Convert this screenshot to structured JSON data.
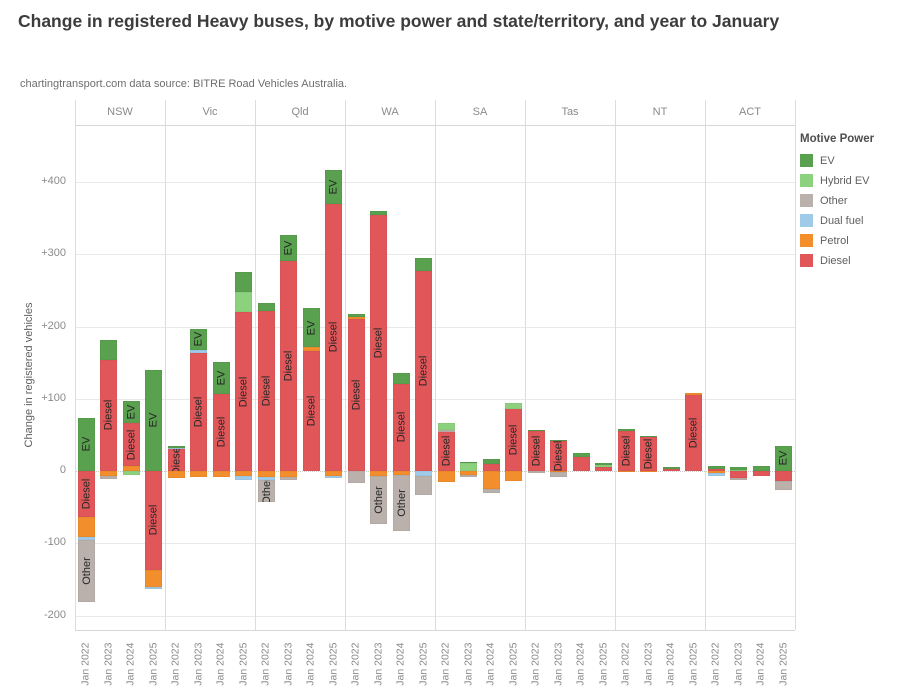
{
  "title": "Change in registered Heavy buses, by motive power and state/territory, and year to January",
  "subtitle": "chartingtransport.com  data source: BITRE Road Vehicles Australia.",
  "y_axis_title": "Change in registered vehicles",
  "legend": {
    "title": "Motive Power",
    "items": [
      {
        "label": "EV",
        "color": "#59a14f"
      },
      {
        "label": "Hybrid EV",
        "color": "#8cd17d"
      },
      {
        "label": "Other",
        "color": "#bab0ac"
      },
      {
        "label": "Dual fuel",
        "color": "#a0cbe8"
      },
      {
        "label": "Petrol",
        "color": "#f28e2b"
      },
      {
        "label": "Diesel",
        "color": "#e15759"
      }
    ]
  },
  "chart_data": {
    "type": "bar",
    "stacked": true,
    "grid": true,
    "legend_position": "top-right",
    "ylabel": "Change in registered vehicles",
    "ylim": [
      -220,
      465
    ],
    "y_ticks": [
      {
        "v": 400,
        "label": "+400"
      },
      {
        "v": 300,
        "label": "+300"
      },
      {
        "v": 200,
        "label": "+200"
      },
      {
        "v": 100,
        "label": "+100"
      },
      {
        "v": 0,
        "label": "0"
      },
      {
        "v": -100,
        "label": "-100"
      },
      {
        "v": -200,
        "label": "-200"
      }
    ],
    "years": [
      "Jan 2022",
      "Jan 2023",
      "Jan 2024",
      "Jan 2025"
    ],
    "label_min_abs_value": 30,
    "panels": [
      {
        "state": "NSW",
        "bars": [
          {
            "year": "Jan 2022",
            "segments": [
              {
                "m": "EV",
                "v": 74
              },
              {
                "m": "Diesel",
                "v": -63
              },
              {
                "m": "Petrol",
                "v": -29
              },
              {
                "m": "Dual fuel",
                "v": -3
              },
              {
                "m": "Other",
                "v": -87
              }
            ]
          },
          {
            "year": "Jan 2023",
            "segments": [
              {
                "m": "Diesel",
                "v": 154
              },
              {
                "m": "EV",
                "v": 27
              },
              {
                "m": "Petrol",
                "v": -7
              },
              {
                "m": "Other",
                "v": -4
              }
            ]
          },
          {
            "year": "Jan 2024",
            "segments": [
              {
                "m": "Petrol",
                "v": 7
              },
              {
                "m": "Diesel",
                "v": 59
              },
              {
                "m": "EV",
                "v": 31
              },
              {
                "m": "Hybrid EV",
                "v": -5
              }
            ]
          },
          {
            "year": "Jan 2025",
            "segments": [
              {
                "m": "EV",
                "v": 140
              },
              {
                "m": "Diesel",
                "v": -137
              },
              {
                "m": "Petrol",
                "v": -23
              },
              {
                "m": "Dual fuel",
                "v": -4
              }
            ]
          }
        ]
      },
      {
        "state": "Vic",
        "bars": [
          {
            "year": "Jan 2022",
            "segments": [
              {
                "m": "Diesel",
                "v": 30
              },
              {
                "m": "Dual fuel",
                "v": 2
              },
              {
                "m": "EV",
                "v": 3
              },
              {
                "m": "Petrol",
                "v": -9
              }
            ]
          },
          {
            "year": "Jan 2023",
            "segments": [
              {
                "m": "Diesel",
                "v": 163
              },
              {
                "m": "Dual fuel",
                "v": 4
              },
              {
                "m": "EV",
                "v": 30
              },
              {
                "m": "Petrol",
                "v": -8
              }
            ]
          },
          {
            "year": "Jan 2024",
            "segments": [
              {
                "m": "Diesel",
                "v": 107
              },
              {
                "m": "EV",
                "v": 44
              },
              {
                "m": "Petrol",
                "v": -8
              }
            ]
          },
          {
            "year": "Jan 2025",
            "segments": [
              {
                "m": "Diesel",
                "v": 220
              },
              {
                "m": "Hybrid EV",
                "v": 28
              },
              {
                "m": "EV",
                "v": 27
              },
              {
                "m": "Petrol",
                "v": -7
              },
              {
                "m": "Dual fuel",
                "v": -6
              }
            ]
          }
        ]
      },
      {
        "state": "Qld",
        "bars": [
          {
            "year": "Jan 2022",
            "segments": [
              {
                "m": "Diesel",
                "v": 221
              },
              {
                "m": "EV",
                "v": 12
              },
              {
                "m": "Petrol",
                "v": -8
              },
              {
                "m": "Dual fuel",
                "v": -5
              },
              {
                "m": "Other",
                "v": -30
              }
            ]
          },
          {
            "year": "Jan 2023",
            "segments": [
              {
                "m": "Diesel",
                "v": 290
              },
              {
                "m": "EV",
                "v": 37
              },
              {
                "m": "Petrol",
                "v": -8
              },
              {
                "m": "Other",
                "v": -5
              }
            ]
          },
          {
            "year": "Jan 2024",
            "segments": [
              {
                "m": "Diesel",
                "v": 166
              },
              {
                "m": "Petrol",
                "v": 5
              },
              {
                "m": "EV",
                "v": 55
              }
            ]
          },
          {
            "year": "Jan 2025",
            "segments": [
              {
                "m": "Diesel",
                "v": 370
              },
              {
                "m": "EV",
                "v": 46
              },
              {
                "m": "Petrol",
                "v": -7
              },
              {
                "m": "Dual fuel",
                "v": -3
              }
            ]
          }
        ]
      },
      {
        "state": "WA",
        "bars": [
          {
            "year": "Jan 2022",
            "segments": [
              {
                "m": "Diesel",
                "v": 210
              },
              {
                "m": "Petrol",
                "v": 3
              },
              {
                "m": "EV",
                "v": 4
              },
              {
                "m": "Other",
                "v": -17
              }
            ]
          },
          {
            "year": "Jan 2023",
            "segments": [
              {
                "m": "Diesel",
                "v": 355
              },
              {
                "m": "EV",
                "v": 5
              },
              {
                "m": "Petrol",
                "v": -7
              },
              {
                "m": "Other",
                "v": -67
              }
            ]
          },
          {
            "year": "Jan 2024",
            "segments": [
              {
                "m": "Diesel",
                "v": 121
              },
              {
                "m": "EV",
                "v": 14
              },
              {
                "m": "Petrol",
                "v": -6
              },
              {
                "m": "Other",
                "v": -77
              }
            ]
          },
          {
            "year": "Jan 2025",
            "segments": [
              {
                "m": "Diesel",
                "v": 277
              },
              {
                "m": "EV",
                "v": 18
              },
              {
                "m": "Dual fuel",
                "v": -7
              },
              {
                "m": "Other",
                "v": -26
              }
            ]
          }
        ]
      },
      {
        "state": "SA",
        "bars": [
          {
            "year": "Jan 2022",
            "segments": [
              {
                "m": "Diesel",
                "v": 54
              },
              {
                "m": "Other",
                "v": 3
              },
              {
                "m": "Hybrid EV",
                "v": 9
              },
              {
                "m": "Petrol",
                "v": -15
              }
            ]
          },
          {
            "year": "Jan 2023",
            "segments": [
              {
                "m": "Hybrid EV",
                "v": 11
              },
              {
                "m": "EV",
                "v": 2
              },
              {
                "m": "Petrol",
                "v": -5
              },
              {
                "m": "Other",
                "v": -3
              }
            ]
          },
          {
            "year": "Jan 2024",
            "segments": [
              {
                "m": "Diesel",
                "v": 10
              },
              {
                "m": "EV",
                "v": 6
              },
              {
                "m": "Petrol",
                "v": -25
              },
              {
                "m": "Other",
                "v": -6
              }
            ]
          },
          {
            "year": "Jan 2025",
            "segments": [
              {
                "m": "Diesel",
                "v": 86
              },
              {
                "m": "Hybrid EV",
                "v": 8
              },
              {
                "m": "Petrol",
                "v": -14
              }
            ]
          }
        ]
      },
      {
        "state": "Tas",
        "bars": [
          {
            "year": "Jan 2022",
            "segments": [
              {
                "m": "Diesel",
                "v": 55
              },
              {
                "m": "EV",
                "v": 2
              },
              {
                "m": "Other",
                "v": -3
              }
            ]
          },
          {
            "year": "Jan 2023",
            "segments": [
              {
                "m": "Diesel",
                "v": 41
              },
              {
                "m": "EV",
                "v": 2
              },
              {
                "m": "Petrol",
                "v": -2
              },
              {
                "m": "Other",
                "v": -6
              }
            ]
          },
          {
            "year": "Jan 2024",
            "segments": [
              {
                "m": "Diesel",
                "v": 19
              },
              {
                "m": "EV",
                "v": 6
              }
            ]
          },
          {
            "year": "Jan 2025",
            "segments": [
              {
                "m": "Diesel",
                "v": 5
              },
              {
                "m": "Hybrid EV",
                "v": 3
              },
              {
                "m": "EV",
                "v": 3
              }
            ]
          }
        ]
      },
      {
        "state": "NT",
        "bars": [
          {
            "year": "Jan 2022",
            "segments": [
              {
                "m": "Diesel",
                "v": 56
              },
              {
                "m": "EV",
                "v": 2
              },
              {
                "m": "Petrol",
                "v": -2
              }
            ]
          },
          {
            "year": "Jan 2023",
            "segments": [
              {
                "m": "Diesel",
                "v": 47
              },
              {
                "m": "EV",
                "v": 2
              },
              {
                "m": "Petrol",
                "v": -2
              }
            ]
          },
          {
            "year": "Jan 2024",
            "segments": [
              {
                "m": "Diesel",
                "v": 3
              },
              {
                "m": "EV",
                "v": 2
              }
            ]
          },
          {
            "year": "Jan 2025",
            "segments": [
              {
                "m": "Diesel",
                "v": 105
              },
              {
                "m": "Petrol",
                "v": 3
              }
            ]
          }
        ]
      },
      {
        "state": "ACT",
        "bars": [
          {
            "year": "Jan 2022",
            "segments": [
              {
                "m": "Diesel",
                "v": 3
              },
              {
                "m": "EV",
                "v": 4
              },
              {
                "m": "Petrol",
                "v": -3
              },
              {
                "m": "Dual fuel",
                "v": -4
              }
            ]
          },
          {
            "year": "Jan 2023",
            "segments": [
              {
                "m": "Hybrid EV",
                "v": 2
              },
              {
                "m": "EV",
                "v": 3
              },
              {
                "m": "Diesel",
                "v": -10
              },
              {
                "m": "Other",
                "v": -3
              }
            ]
          },
          {
            "year": "Jan 2024",
            "segments": [
              {
                "m": "EV",
                "v": 7
              },
              {
                "m": "Diesel",
                "v": -7
              }
            ]
          },
          {
            "year": "Jan 2025",
            "segments": [
              {
                "m": "EV",
                "v": 35
              },
              {
                "m": "Diesel",
                "v": -14
              },
              {
                "m": "Other",
                "v": -12
              }
            ]
          }
        ]
      }
    ]
  }
}
